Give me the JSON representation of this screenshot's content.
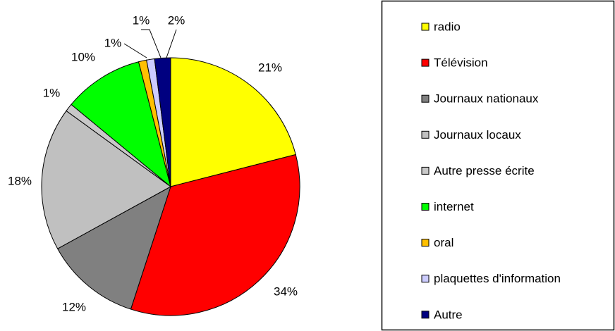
{
  "chart_data": {
    "type": "pie",
    "categories": [
      "radio",
      "Télévision",
      "Journaux nationaux",
      "Journaux locaux",
      "Autre presse écrite",
      "internet",
      "oral",
      "plaquettes d'information",
      "Autre"
    ],
    "values": [
      21,
      34,
      12,
      18,
      1,
      10,
      1,
      1,
      2
    ],
    "value_labels": [
      "21%",
      "34%",
      "12%",
      "18%",
      "1%",
      "10%",
      "1%",
      "1%",
      "2%"
    ],
    "colors": [
      "#ffff00",
      "#ff0000",
      "#808080",
      "#c0c0c0",
      "#c8c8c8",
      "#00ff00",
      "#ffc000",
      "#ccccff",
      "#000080"
    ],
    "legend": "right"
  }
}
